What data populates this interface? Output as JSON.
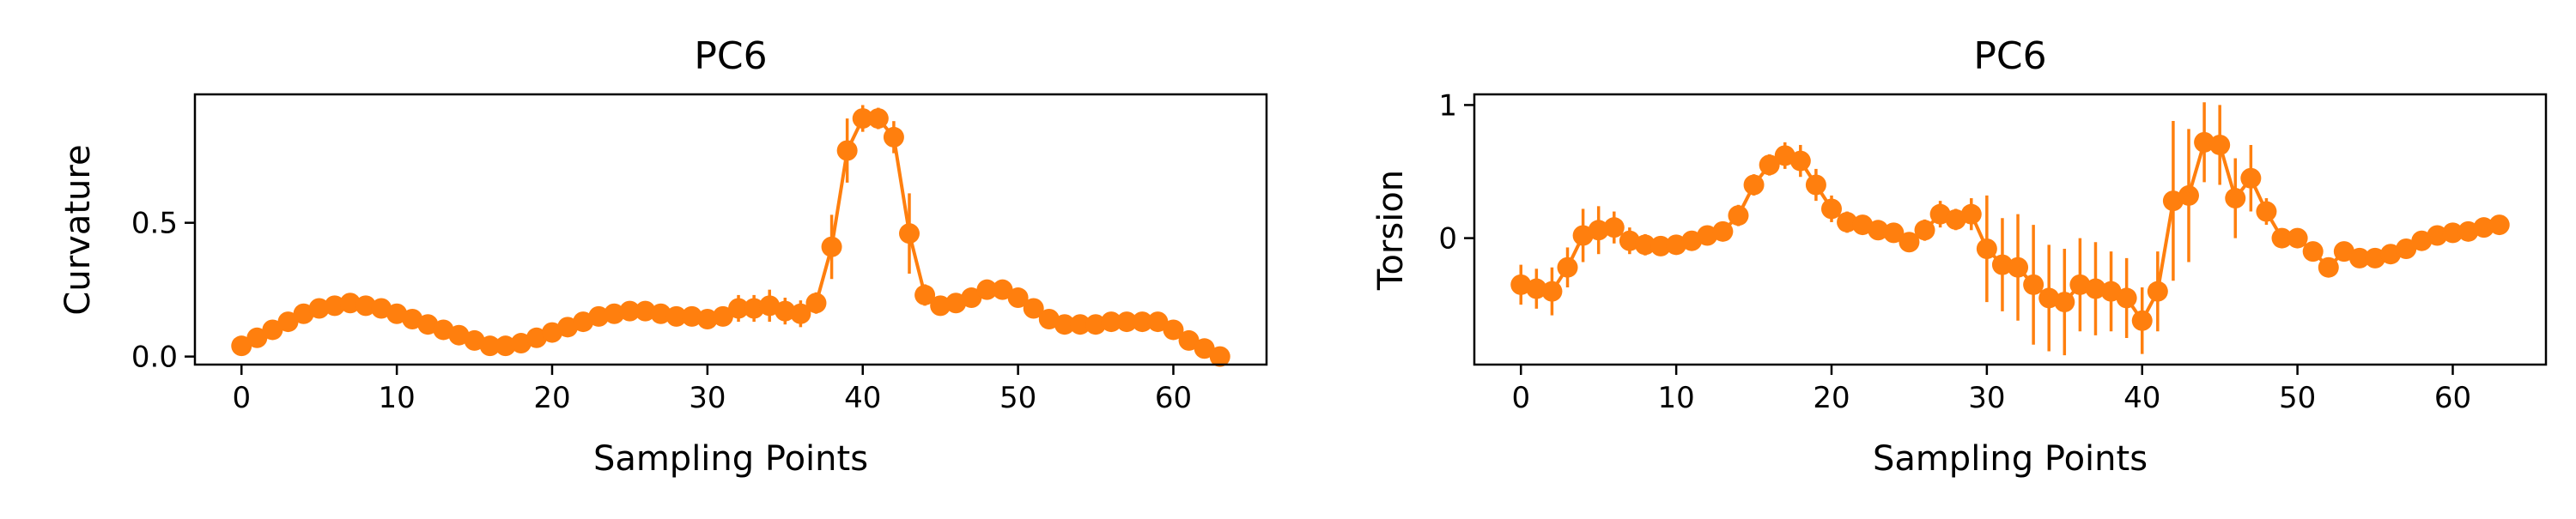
{
  "colors": {
    "series": "#ff7f0e",
    "axis": "#000000",
    "background": "#ffffff"
  },
  "chart_data": [
    {
      "type": "line",
      "title": "PC6",
      "xlabel": "Sampling Points",
      "ylabel": "Curvature",
      "xlim": [
        -3,
        66
      ],
      "ylim": [
        -0.03,
        0.98
      ],
      "xticks": [
        {
          "value": 0,
          "label": "0"
        },
        {
          "value": 10,
          "label": "10"
        },
        {
          "value": 20,
          "label": "20"
        },
        {
          "value": 30,
          "label": "30"
        },
        {
          "value": 40,
          "label": "40"
        },
        {
          "value": 50,
          "label": "50"
        },
        {
          "value": 60,
          "label": "60"
        }
      ],
      "yticks": [
        {
          "value": 0.0,
          "label": "0.0"
        },
        {
          "value": 0.5,
          "label": "0.5"
        }
      ],
      "grid": false,
      "series": [
        {
          "x": [
            0,
            1,
            2,
            3,
            4,
            5,
            6,
            7,
            8,
            9,
            10,
            11,
            12,
            13,
            14,
            15,
            16,
            17,
            18,
            19,
            20,
            21,
            22,
            23,
            24,
            25,
            26,
            27,
            28,
            29,
            30,
            31,
            32,
            33,
            34,
            35,
            36,
            37,
            38,
            39,
            40,
            41,
            42,
            43,
            44,
            45,
            46,
            47,
            48,
            49,
            50,
            51,
            52,
            53,
            54,
            55,
            56,
            57,
            58,
            59,
            60,
            61,
            62,
            63
          ],
          "y": [
            0.04,
            0.07,
            0.1,
            0.13,
            0.16,
            0.18,
            0.19,
            0.2,
            0.19,
            0.18,
            0.16,
            0.14,
            0.12,
            0.1,
            0.08,
            0.06,
            0.04,
            0.04,
            0.05,
            0.07,
            0.09,
            0.11,
            0.13,
            0.15,
            0.16,
            0.17,
            0.17,
            0.16,
            0.15,
            0.15,
            0.14,
            0.15,
            0.18,
            0.18,
            0.19,
            0.17,
            0.16,
            0.2,
            0.41,
            0.77,
            0.89,
            0.89,
            0.82,
            0.46,
            0.23,
            0.19,
            0.2,
            0.22,
            0.25,
            0.25,
            0.22,
            0.18,
            0.14,
            0.12,
            0.12,
            0.12,
            0.13,
            0.13,
            0.13,
            0.13,
            0.1,
            0.06,
            0.03,
            0.0
          ],
          "err": [
            0.02,
            0.02,
            0.03,
            0.02,
            0.02,
            0.02,
            0.02,
            0.02,
            0.02,
            0.02,
            0.02,
            0.02,
            0.02,
            0.02,
            0.02,
            0.02,
            0.02,
            0.02,
            0.02,
            0.02,
            0.02,
            0.02,
            0.02,
            0.02,
            0.02,
            0.02,
            0.02,
            0.02,
            0.02,
            0.02,
            0.02,
            0.03,
            0.05,
            0.05,
            0.06,
            0.05,
            0.05,
            0.04,
            0.12,
            0.12,
            0.05,
            0.04,
            0.06,
            0.15,
            0.04,
            0.03,
            0.03,
            0.03,
            0.03,
            0.03,
            0.03,
            0.03,
            0.02,
            0.02,
            0.02,
            0.02,
            0.02,
            0.02,
            0.02,
            0.02,
            0.02,
            0.02,
            0.02,
            0.02
          ]
        }
      ]
    },
    {
      "type": "line",
      "title": "PC6",
      "xlabel": "Sampling Points",
      "ylabel": "Torsion",
      "xlim": [
        -3,
        66
      ],
      "ylim": [
        -0.95,
        1.08
      ],
      "xticks": [
        {
          "value": 0,
          "label": "0"
        },
        {
          "value": 10,
          "label": "10"
        },
        {
          "value": 20,
          "label": "20"
        },
        {
          "value": 30,
          "label": "30"
        },
        {
          "value": 40,
          "label": "40"
        },
        {
          "value": 50,
          "label": "50"
        },
        {
          "value": 60,
          "label": "60"
        }
      ],
      "yticks": [
        {
          "value": 0,
          "label": "0"
        },
        {
          "value": 1,
          "label": "1"
        }
      ],
      "grid": false,
      "series": [
        {
          "x": [
            0,
            1,
            2,
            3,
            4,
            5,
            6,
            7,
            8,
            9,
            10,
            11,
            12,
            13,
            14,
            15,
            16,
            17,
            18,
            19,
            20,
            21,
            22,
            23,
            24,
            25,
            26,
            27,
            28,
            29,
            30,
            31,
            32,
            33,
            34,
            35,
            36,
            37,
            38,
            39,
            40,
            41,
            42,
            43,
            44,
            45,
            46,
            47,
            48,
            49,
            50,
            51,
            52,
            53,
            54,
            55,
            56,
            57,
            58,
            59,
            60,
            61,
            62,
            63
          ],
          "y": [
            -0.35,
            -0.38,
            -0.4,
            -0.22,
            0.02,
            0.06,
            0.08,
            -0.02,
            -0.05,
            -0.06,
            -0.05,
            -0.02,
            0.02,
            0.05,
            0.17,
            0.4,
            0.55,
            0.62,
            0.58,
            0.4,
            0.22,
            0.12,
            0.1,
            0.06,
            0.04,
            -0.03,
            0.06,
            0.18,
            0.14,
            0.18,
            -0.08,
            -0.2,
            -0.22,
            -0.35,
            -0.45,
            -0.48,
            -0.35,
            -0.38,
            -0.4,
            -0.45,
            -0.62,
            -0.4,
            0.28,
            0.32,
            0.72,
            0.7,
            0.3,
            0.45,
            0.2,
            0.0,
            0.0,
            -0.1,
            -0.22,
            -0.1,
            -0.15,
            -0.15,
            -0.12,
            -0.08,
            -0.02,
            0.02,
            0.04,
            0.05,
            0.08,
            0.1
          ],
          "err": [
            0.15,
            0.15,
            0.18,
            0.15,
            0.2,
            0.18,
            0.12,
            0.1,
            0.08,
            0.06,
            0.06,
            0.06,
            0.06,
            0.06,
            0.08,
            0.08,
            0.08,
            0.1,
            0.12,
            0.12,
            0.1,
            0.08,
            0.06,
            0.06,
            0.06,
            0.06,
            0.08,
            0.1,
            0.08,
            0.12,
            0.4,
            0.35,
            0.4,
            0.45,
            0.4,
            0.4,
            0.35,
            0.35,
            0.3,
            0.3,
            0.25,
            0.3,
            0.6,
            0.5,
            0.3,
            0.3,
            0.3,
            0.25,
            0.1,
            0.06,
            0.06,
            0.06,
            0.06,
            0.06,
            0.06,
            0.06,
            0.06,
            0.05,
            0.05,
            0.05,
            0.05,
            0.05,
            0.05,
            0.05
          ]
        }
      ]
    }
  ]
}
